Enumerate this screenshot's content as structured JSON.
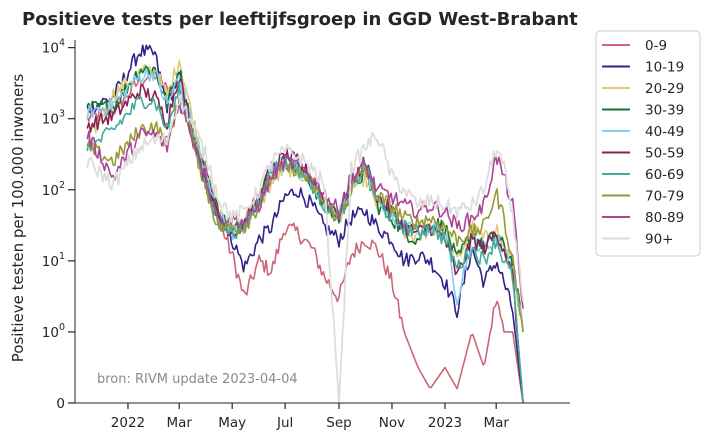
{
  "chart_data": {
    "type": "line",
    "title": "Positieve tests per leeftijfsgroep in GGD West-Brabant",
    "xlabel": "",
    "ylabel": "Positieve testen per 100.000 inwoners",
    "yscale": "symlog",
    "ylim": [
      0,
      12000
    ],
    "y_ticks": [
      {
        "value": 0,
        "label": "0"
      },
      {
        "value": 1,
        "label": "10^0"
      },
      {
        "value": 10,
        "label": "10^1"
      },
      {
        "value": 100,
        "label": "10^2"
      },
      {
        "value": 1000,
        "label": "10^3"
      },
      {
        "value": 10000,
        "label": "10^4"
      }
    ],
    "x_tick_labels": [
      "2022",
      "Mar",
      "May",
      "Jul",
      "Sep",
      "Nov",
      "2023",
      "Mar"
    ],
    "x_tick_dates": [
      "2022-01-01",
      "2022-03-01",
      "2022-05-01",
      "2022-07-01",
      "2022-09-01",
      "2022-11-01",
      "2023-01-01",
      "2023-03-01"
    ],
    "xlim": [
      "2021-11-01",
      "2023-05-25"
    ],
    "legend_position": "outside-top-right",
    "grid": false,
    "annotation": "bron: RIVM update 2023-04-04",
    "anchor_dates": [
      "2021-11-15",
      "2021-12-15",
      "2022-01-15",
      "2022-02-01",
      "2022-02-15",
      "2022-03-01",
      "2022-03-15",
      "2022-04-01",
      "2022-04-15",
      "2022-05-01",
      "2022-05-15",
      "2022-06-01",
      "2022-06-15",
      "2022-07-01",
      "2022-07-15",
      "2022-08-01",
      "2022-08-15",
      "2022-09-01",
      "2022-09-15",
      "2022-10-01",
      "2022-10-15",
      "2022-11-01",
      "2022-11-15",
      "2022-12-01",
      "2022-12-15",
      "2023-01-01",
      "2023-01-15",
      "2023-02-01",
      "2023-02-15",
      "2023-03-01",
      "2023-03-10",
      "2023-03-20",
      "2023-04-01"
    ],
    "series": [
      {
        "name": "0-9",
        "color": "#cc6677",
        "values": [
          1000,
          1300,
          3500,
          4200,
          2500,
          3000,
          700,
          200,
          40,
          12,
          3,
          10,
          7,
          30,
          25,
          15,
          6,
          3,
          12,
          20,
          15,
          5,
          1,
          0.5,
          0.2,
          0.5,
          0.2,
          1,
          0.5,
          3,
          1,
          1,
          0
        ]
      },
      {
        "name": "10-19",
        "color": "#332288",
        "values": [
          1400,
          2000,
          9000,
          8000,
          1500,
          4000,
          600,
          150,
          50,
          20,
          8,
          20,
          30,
          80,
          100,
          60,
          30,
          20,
          40,
          50,
          30,
          20,
          10,
          12,
          10,
          5,
          2,
          15,
          5,
          10,
          5,
          2,
          0
        ]
      },
      {
        "name": "20-29",
        "color": "#ddcc77",
        "values": [
          450,
          2200,
          4500,
          5000,
          2000,
          7000,
          1200,
          200,
          50,
          30,
          40,
          60,
          120,
          200,
          180,
          120,
          60,
          40,
          100,
          150,
          60,
          40,
          25,
          20,
          30,
          25,
          10,
          30,
          20,
          30,
          15,
          10,
          1
        ]
      },
      {
        "name": "30-39",
        "color": "#117733",
        "values": [
          1400,
          1500,
          5000,
          5000,
          1600,
          5000,
          800,
          150,
          50,
          25,
          35,
          80,
          200,
          250,
          200,
          120,
          60,
          40,
          100,
          180,
          60,
          40,
          25,
          20,
          35,
          30,
          10,
          25,
          15,
          25,
          15,
          10,
          1
        ]
      },
      {
        "name": "40-49",
        "color": "#88ccee",
        "values": [
          1200,
          1600,
          4000,
          4500,
          1500,
          4000,
          900,
          150,
          45,
          25,
          30,
          70,
          180,
          250,
          200,
          130,
          60,
          45,
          110,
          200,
          70,
          40,
          30,
          25,
          30,
          25,
          3,
          20,
          15,
          20,
          15,
          8,
          1
        ]
      },
      {
        "name": "50-59",
        "color": "#882255",
        "values": [
          800,
          1100,
          2500,
          2000,
          900,
          4200,
          700,
          120,
          40,
          25,
          35,
          80,
          200,
          300,
          250,
          150,
          70,
          50,
          120,
          250,
          80,
          50,
          30,
          25,
          30,
          20,
          6,
          20,
          15,
          25,
          15,
          6,
          0
        ]
      },
      {
        "name": "60-69",
        "color": "#44aa99",
        "values": [
          350,
          700,
          1800,
          1800,
          700,
          2500,
          700,
          100,
          35,
          25,
          30,
          70,
          180,
          250,
          200,
          120,
          60,
          40,
          100,
          220,
          70,
          40,
          30,
          25,
          30,
          20,
          8,
          15,
          10,
          20,
          10,
          6,
          0
        ]
      },
      {
        "name": "70-79",
        "color": "#999933",
        "values": [
          400,
          250,
          700,
          800,
          450,
          1800,
          600,
          100,
          30,
          30,
          30,
          60,
          150,
          200,
          200,
          120,
          70,
          40,
          100,
          200,
          80,
          60,
          40,
          35,
          40,
          30,
          20,
          25,
          30,
          90,
          40,
          10,
          1
        ]
      },
      {
        "name": "80-89",
        "color": "#aa4499",
        "values": [
          600,
          150,
          600,
          600,
          400,
          1800,
          600,
          150,
          40,
          40,
          35,
          60,
          150,
          250,
          220,
          150,
          90,
          50,
          150,
          220,
          100,
          80,
          60,
          50,
          60,
          50,
          30,
          40,
          60,
          300,
          150,
          60,
          2
        ]
      },
      {
        "name": "90+",
        "color": "#dddddd",
        "values": [
          250,
          120,
          400,
          500,
          500,
          2000,
          900,
          300,
          80,
          40,
          50,
          100,
          250,
          350,
          300,
          200,
          120,
          0,
          200,
          400,
          600,
          150,
          100,
          60,
          70,
          60,
          50,
          60,
          100,
          400,
          200,
          40,
          3
        ]
      }
    ]
  }
}
